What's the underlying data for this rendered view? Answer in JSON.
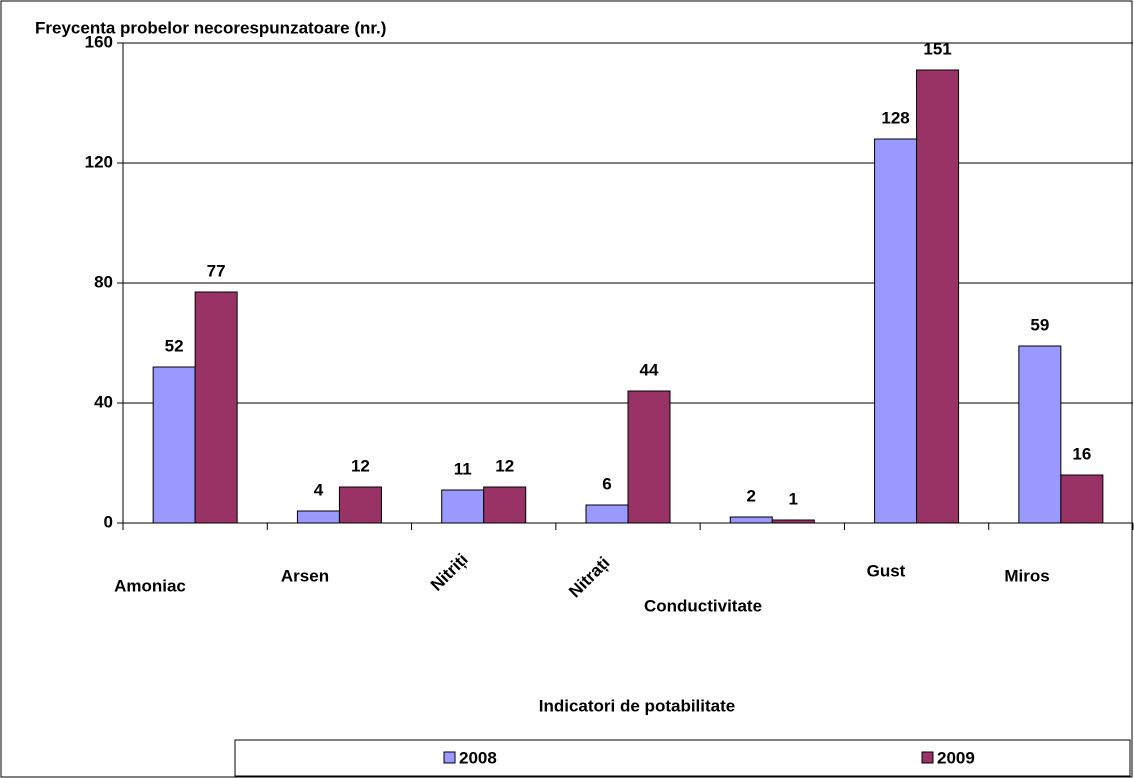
{
  "chart_data": {
    "type": "bar",
    "title": "Freycenta probelor necorespunzatoare (nr.)",
    "x_label": "Indicatori de potabilitate",
    "categories": [
      "Amoniac",
      "Arsen",
      "Nitriți",
      "Nitrați",
      "Conductivitate",
      "Gust",
      "Miros"
    ],
    "series": [
      {
        "name": "2008",
        "color": "#9999ff",
        "values": [
          52,
          4,
          11,
          6,
          2,
          128,
          59
        ]
      },
      {
        "name": "2009",
        "color": "#993366",
        "values": [
          77,
          12,
          12,
          44,
          1,
          151,
          16
        ]
      }
    ],
    "ylim": [
      0,
      160
    ],
    "yticks": [
      0,
      40,
      80,
      120,
      160
    ],
    "grid": true,
    "legend": "bottom"
  }
}
